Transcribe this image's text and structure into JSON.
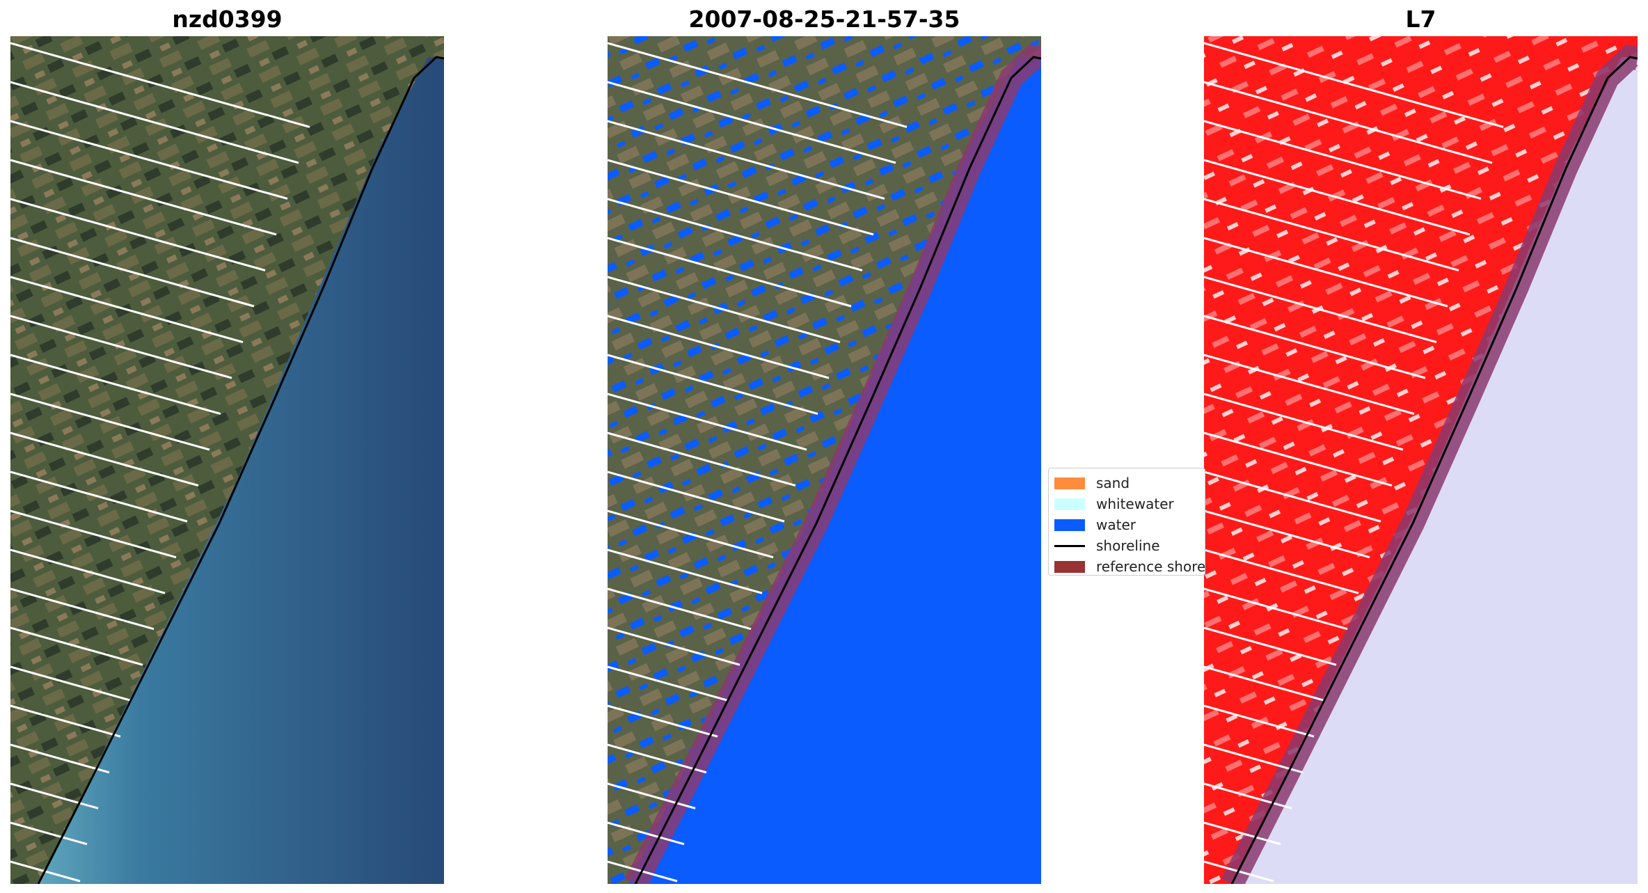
{
  "titles": {
    "panel_1": "nzd0399",
    "panel_2": "2007-08-25-21-57-35",
    "panel_3": "L7"
  },
  "legend": {
    "items": [
      {
        "label": "sand",
        "color": "#ff8c3c",
        "kind": "patch"
      },
      {
        "label": "whitewater",
        "color": "#ccffff",
        "kind": "patch"
      },
      {
        "label": "water",
        "color": "#0a5cff",
        "kind": "patch"
      },
      {
        "label": "shoreline",
        "color": "#000000",
        "kind": "line"
      },
      {
        "label": "reference shoreline",
        "color": "#993333",
        "kind": "patch"
      }
    ]
  },
  "colors": {
    "land_base": "#4a5a3a",
    "sea_rgb": "#2c5280",
    "surf_rgb": "#5a9ab5",
    "water_class": "#0a5cff",
    "reference_buffer": "#8b3a70",
    "land_index": "#ff1a1a",
    "sea_index": "#dcdcf6",
    "shoreline": "#000000",
    "transect": "#ffffff"
  }
}
